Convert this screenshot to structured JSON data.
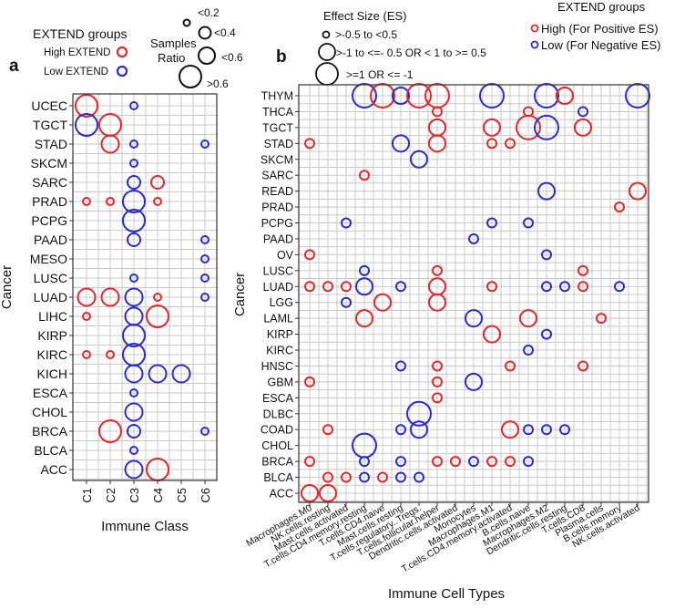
{
  "colors": {
    "high": "#e8262a",
    "low": "#2b2bd4"
  },
  "panel_a": {
    "letter": "a",
    "legend_group_title": "EXTEND groups",
    "legend_high": "High EXTEND",
    "legend_low": "Low EXTEND",
    "legend_size_title_1": "Samples",
    "legend_size_title_2": "Ratio",
    "size_labels": [
      "<0.2",
      "<0.4",
      "<0.6",
      ">0.6"
    ]
  },
  "panel_b": {
    "letter": "b",
    "legend_size_title": "Effect Size (ES)",
    "size_labels": [
      ">-0.5 to <0.5",
      ">-1 to <=- 0.5 OR  < 1 to >= 0.5",
      ">=1 OR <= -1"
    ],
    "legend_group_title": "EXTEND groups",
    "legend_high": "High (For Positive ES)",
    "legend_low": "Low  (For Negative ES)"
  },
  "chart_data": [
    {
      "type": "scatter",
      "subtype": "bubble",
      "xlabel": "Immune Class",
      "ylabel": "Cancer",
      "categories_x": [
        "C1",
        "C2",
        "C3",
        "C4",
        "C5",
        "C6"
      ],
      "categories_y": [
        "UCEC",
        "TGCT",
        "STAD",
        "SKCM",
        "SARC",
        "PRAD",
        "PCPG",
        "PAAD",
        "MESO",
        "LUSC",
        "LUAD",
        "LIHC",
        "KIRP",
        "KIRC",
        "KICH",
        "ESCA",
        "CHOL",
        "BRCA",
        "BLCA",
        "ACC"
      ],
      "size_classes": [
        "<0.2",
        "<0.4",
        "<0.6",
        ">0.6"
      ],
      "grid": true,
      "points_format": [
        "cancer",
        "class",
        "group",
        "size_class"
      ],
      "points": [
        [
          "UCEC",
          "C1",
          "high",
          ">0.6"
        ],
        [
          "UCEC",
          "C3",
          "low",
          "<0.2"
        ],
        [
          "TGCT",
          "C1",
          "low",
          ">0.6"
        ],
        [
          "TGCT",
          "C2",
          "high",
          ">0.6"
        ],
        [
          "STAD",
          "C2",
          "high",
          "<0.6"
        ],
        [
          "STAD",
          "C3",
          "low",
          "<0.2"
        ],
        [
          "STAD",
          "C6",
          "low",
          "<0.2"
        ],
        [
          "SKCM",
          "C3",
          "low",
          "<0.2"
        ],
        [
          "SARC",
          "C3",
          "low",
          "<0.4"
        ],
        [
          "SARC",
          "C4",
          "high",
          "<0.4"
        ],
        [
          "PRAD",
          "C1",
          "high",
          "<0.2"
        ],
        [
          "PRAD",
          "C2",
          "high",
          "<0.2"
        ],
        [
          "PRAD",
          "C3",
          "low",
          ">0.6"
        ],
        [
          "PRAD",
          "C4",
          "high",
          "<0.2"
        ],
        [
          "PCPG",
          "C3",
          "low",
          ">0.6"
        ],
        [
          "PAAD",
          "C3",
          "low",
          "<0.4"
        ],
        [
          "PAAD",
          "C6",
          "low",
          "<0.2"
        ],
        [
          "MESO",
          "C6",
          "low",
          "<0.2"
        ],
        [
          "LUSC",
          "C3",
          "low",
          "<0.2"
        ],
        [
          "LUSC",
          "C6",
          "low",
          "<0.2"
        ],
        [
          "LUAD",
          "C1",
          "high",
          "<0.6"
        ],
        [
          "LUAD",
          "C2",
          "high",
          "<0.6"
        ],
        [
          "LUAD",
          "C3",
          "low",
          "<0.6"
        ],
        [
          "LUAD",
          "C4",
          "high",
          "<0.2"
        ],
        [
          "LUAD",
          "C6",
          "low",
          "<0.2"
        ],
        [
          "LIHC",
          "C1",
          "high",
          "<0.2"
        ],
        [
          "LIHC",
          "C3",
          "low",
          "<0.6"
        ],
        [
          "LIHC",
          "C4",
          "high",
          ">0.6"
        ],
        [
          "KIRP",
          "C3",
          "low",
          ">0.6"
        ],
        [
          "KIRC",
          "C1",
          "high",
          "<0.2"
        ],
        [
          "KIRC",
          "C2",
          "high",
          "<0.2"
        ],
        [
          "KIRC",
          "C3",
          "low",
          ">0.6"
        ],
        [
          "KICH",
          "C3",
          "low",
          "<0.6"
        ],
        [
          "KICH",
          "C4",
          "low",
          "<0.6"
        ],
        [
          "KICH",
          "C5",
          "low",
          "<0.6"
        ],
        [
          "ESCA",
          "C3",
          "low",
          "<0.2"
        ],
        [
          "CHOL",
          "C3",
          "low",
          "<0.6"
        ],
        [
          "BRCA",
          "C2",
          "high",
          ">0.6"
        ],
        [
          "BRCA",
          "C3",
          "low",
          "<0.4"
        ],
        [
          "BRCA",
          "C6",
          "low",
          "<0.2"
        ],
        [
          "BLCA",
          "C3",
          "low",
          "<0.2"
        ],
        [
          "ACC",
          "C3",
          "low",
          "<0.6"
        ],
        [
          "ACC",
          "C4",
          "high",
          ">0.6"
        ]
      ]
    },
    {
      "type": "scatter",
      "subtype": "bubble",
      "xlabel": "Immune Cell Types",
      "ylabel": "Cancer",
      "categories_x": [
        "Macrophages.M0",
        "NK.cells.resting",
        "Mast.cells.activated",
        "T.cells.CD4.memory.resting",
        "T.cells.CD4.naive",
        "Mast.cells.resting",
        "T.cells.regulatory..Tregs.",
        "T.cells.follicular.helper",
        "Dendritic.cells.activated",
        "Monocytes",
        "Macrophages.M1",
        "T.cells.CD4.memory.activated",
        "B.cells.naive",
        "Macrophages.M2",
        "Dendritic.cells.resting",
        "T.cells.CD8",
        "Plasma.cells",
        "B.cells.memory",
        "NK.cells.activated"
      ],
      "categories_y": [
        "THYM",
        "THCA",
        "TGCT",
        "STAD",
        "SKCM",
        "SARC",
        "READ",
        "PRAD",
        "PCPG",
        "PAAD",
        "OV",
        "LUSC",
        "LUAD",
        "LGG",
        "LAML",
        "KIRP",
        "KIRC",
        "HNSC",
        "GBM",
        "ESCA",
        "DLBC",
        "COAD",
        "CHOL",
        "BRCA",
        "BLCA",
        "ACC"
      ],
      "size_classes": [
        "|ES|<0.5",
        "0.5<=|ES|<1",
        "|ES|>=1"
      ],
      "grid": true,
      "points_format": [
        "cancer",
        "cell_type_index_1based",
        "group",
        "size_class_index_1based"
      ],
      "points": [
        [
          "THYM",
          4,
          "low",
          3
        ],
        [
          "THYM",
          5,
          "high",
          3
        ],
        [
          "THYM",
          6,
          "low",
          2
        ],
        [
          "THYM",
          7,
          "high",
          3
        ],
        [
          "THYM",
          8,
          "high",
          3
        ],
        [
          "THYM",
          11,
          "low",
          3
        ],
        [
          "THYM",
          14,
          "low",
          3
        ],
        [
          "THYM",
          15,
          "high",
          2
        ],
        [
          "THYM",
          19,
          "low",
          3
        ],
        [
          "THCA",
          8,
          "high",
          1
        ],
        [
          "THCA",
          13,
          "high",
          1
        ],
        [
          "THCA",
          16,
          "low",
          1
        ],
        [
          "TGCT",
          8,
          "high",
          2
        ],
        [
          "TGCT",
          11,
          "high",
          2
        ],
        [
          "TGCT",
          13,
          "high",
          3
        ],
        [
          "TGCT",
          14,
          "low",
          3
        ],
        [
          "TGCT",
          16,
          "high",
          2
        ],
        [
          "STAD",
          1,
          "high",
          1
        ],
        [
          "STAD",
          6,
          "low",
          2
        ],
        [
          "STAD",
          8,
          "high",
          2
        ],
        [
          "STAD",
          11,
          "high",
          1
        ],
        [
          "STAD",
          12,
          "high",
          1
        ],
        [
          "SKCM",
          7,
          "low",
          2
        ],
        [
          "SARC",
          4,
          "high",
          1
        ],
        [
          "READ",
          14,
          "low",
          2
        ],
        [
          "READ",
          19,
          "high",
          2
        ],
        [
          "PRAD",
          18,
          "high",
          1
        ],
        [
          "PCPG",
          3,
          "low",
          1
        ],
        [
          "PCPG",
          11,
          "low",
          1
        ],
        [
          "PCPG",
          13,
          "low",
          1
        ],
        [
          "PAAD",
          10,
          "low",
          1
        ],
        [
          "OV",
          1,
          "high",
          1
        ],
        [
          "OV",
          14,
          "low",
          1
        ],
        [
          "LUSC",
          4,
          "low",
          1
        ],
        [
          "LUSC",
          8,
          "high",
          1
        ],
        [
          "LUSC",
          16,
          "high",
          1
        ],
        [
          "LUAD",
          1,
          "high",
          1
        ],
        [
          "LUAD",
          2,
          "high",
          1
        ],
        [
          "LUAD",
          3,
          "high",
          1
        ],
        [
          "LUAD",
          4,
          "low",
          2
        ],
        [
          "LUAD",
          6,
          "low",
          1
        ],
        [
          "LUAD",
          8,
          "high",
          2
        ],
        [
          "LUAD",
          11,
          "high",
          1
        ],
        [
          "LUAD",
          14,
          "low",
          1
        ],
        [
          "LUAD",
          15,
          "low",
          1
        ],
        [
          "LUAD",
          16,
          "high",
          1
        ],
        [
          "LUAD",
          18,
          "low",
          1
        ],
        [
          "LGG",
          3,
          "low",
          1
        ],
        [
          "LGG",
          5,
          "high",
          2
        ],
        [
          "LGG",
          8,
          "high",
          2
        ],
        [
          "LAML",
          4,
          "high",
          2
        ],
        [
          "LAML",
          10,
          "low",
          2
        ],
        [
          "LAML",
          13,
          "high",
          2
        ],
        [
          "LAML",
          17,
          "high",
          1
        ],
        [
          "KIRP",
          11,
          "high",
          2
        ],
        [
          "KIRP",
          14,
          "low",
          1
        ],
        [
          "KIRC",
          13,
          "low",
          1
        ],
        [
          "HNSC",
          6,
          "low",
          1
        ],
        [
          "HNSC",
          8,
          "high",
          1
        ],
        [
          "HNSC",
          12,
          "high",
          1
        ],
        [
          "HNSC",
          16,
          "high",
          1
        ],
        [
          "GBM",
          1,
          "high",
          1
        ],
        [
          "GBM",
          8,
          "high",
          1
        ],
        [
          "GBM",
          10,
          "low",
          2
        ],
        [
          "ESCA",
          8,
          "high",
          1
        ],
        [
          "DLBC",
          7,
          "low",
          3
        ],
        [
          "COAD",
          2,
          "high",
          1
        ],
        [
          "COAD",
          6,
          "low",
          1
        ],
        [
          "COAD",
          7,
          "low",
          2
        ],
        [
          "COAD",
          12,
          "high",
          2
        ],
        [
          "COAD",
          13,
          "low",
          1
        ],
        [
          "COAD",
          14,
          "low",
          1
        ],
        [
          "COAD",
          15,
          "low",
          1
        ],
        [
          "CHOL",
          4,
          "low",
          3
        ],
        [
          "BRCA",
          1,
          "high",
          1
        ],
        [
          "BRCA",
          4,
          "low",
          1
        ],
        [
          "BRCA",
          6,
          "low",
          1
        ],
        [
          "BRCA",
          8,
          "high",
          1
        ],
        [
          "BRCA",
          9,
          "high",
          1
        ],
        [
          "BRCA",
          10,
          "low",
          1
        ],
        [
          "BRCA",
          11,
          "high",
          1
        ],
        [
          "BRCA",
          12,
          "high",
          1
        ],
        [
          "BRCA",
          13,
          "low",
          1
        ],
        [
          "BLCA",
          2,
          "high",
          1
        ],
        [
          "BLCA",
          3,
          "high",
          1
        ],
        [
          "BLCA",
          4,
          "low",
          1
        ],
        [
          "BLCA",
          5,
          "high",
          1
        ],
        [
          "BLCA",
          6,
          "low",
          1
        ],
        [
          "BLCA",
          7,
          "low",
          1
        ],
        [
          "ACC",
          1,
          "high",
          2
        ],
        [
          "ACC",
          2,
          "high",
          2
        ]
      ]
    }
  ]
}
